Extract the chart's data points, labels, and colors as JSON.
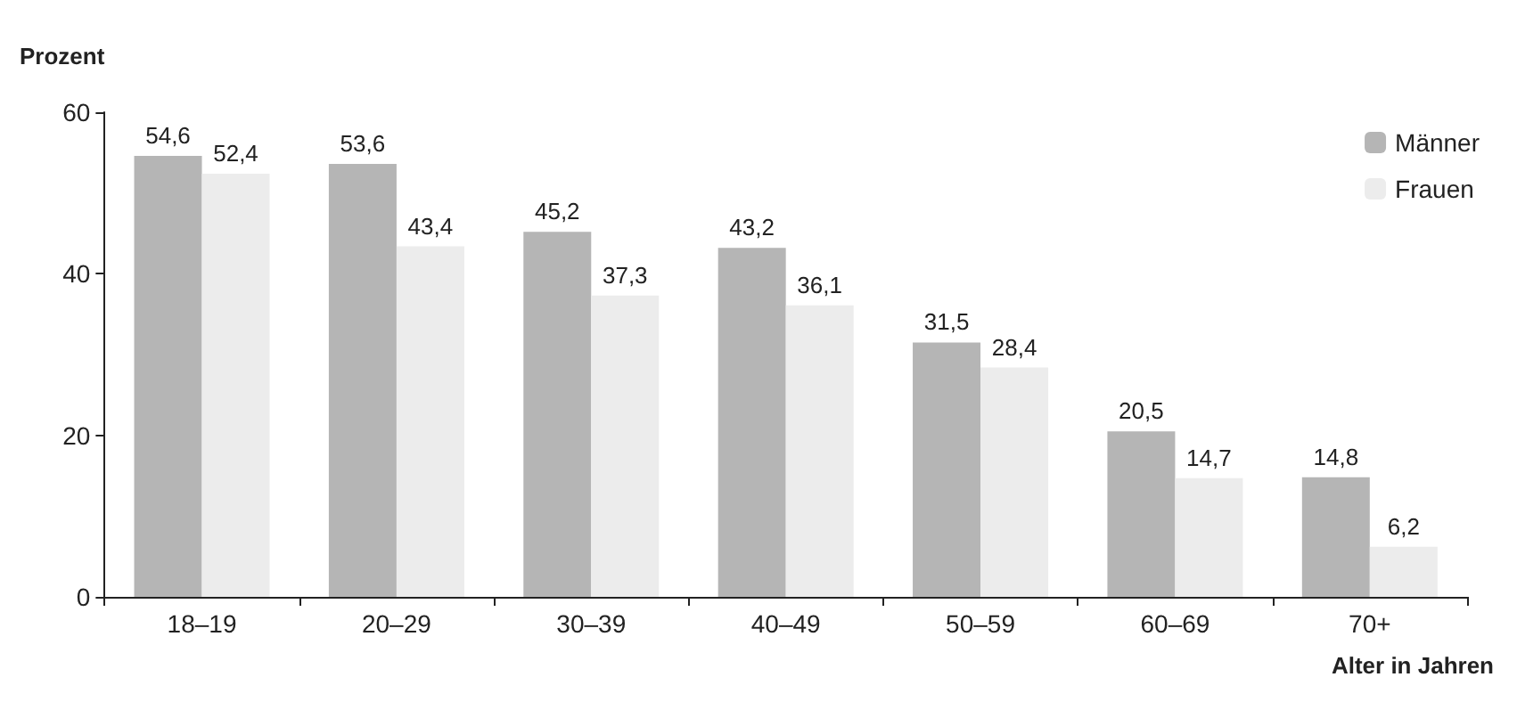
{
  "chart_data": {
    "type": "bar",
    "ylabel": "Prozent",
    "xlabel": "Alter in Jahren",
    "categories": [
      "18–19",
      "20–29",
      "30–39",
      "40–49",
      "50–59",
      "60–69",
      "70+"
    ],
    "series": [
      {
        "name": "Männer",
        "color": "#b5b5b5",
        "values": [
          54.6,
          53.6,
          45.2,
          43.2,
          31.5,
          20.5,
          14.8
        ],
        "value_labels": [
          "54,6",
          "53,6",
          "45,2",
          "43,2",
          "31,5",
          "20,5",
          "14,8"
        ]
      },
      {
        "name": "Frauen",
        "color": "#ececec",
        "values": [
          52.4,
          43.4,
          37.3,
          36.1,
          28.4,
          14.7,
          6.2
        ],
        "value_labels": [
          "52,4",
          "43,4",
          "37,3",
          "36,1",
          "28,4",
          "14,7",
          "6,2"
        ]
      }
    ],
    "ylim": [
      0,
      60
    ],
    "yticks": [
      0,
      20,
      40,
      60
    ],
    "grid": false,
    "legend": "top right"
  }
}
